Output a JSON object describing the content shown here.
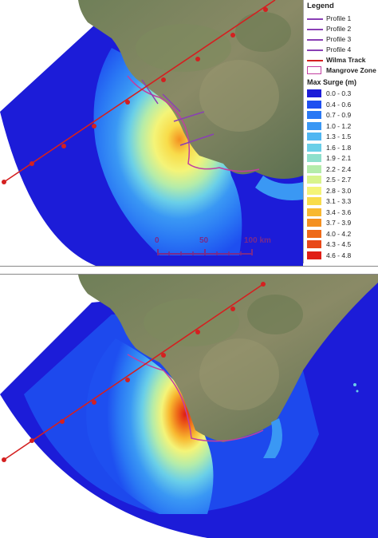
{
  "legend": {
    "title": "Legend",
    "profiles": [
      {
        "label": "Profile 1",
        "color": "#8a3fb5"
      },
      {
        "label": "Profile 2",
        "color": "#8a3fb5"
      },
      {
        "label": "Profile 3",
        "color": "#8a3fb5"
      },
      {
        "label": "Profile 4",
        "color": "#8a3fb5"
      }
    ],
    "track": {
      "label": "Wilma Track",
      "color": "#d42020"
    },
    "mangrove": {
      "label": "Mangrove Zone",
      "color": "#c23fa0"
    },
    "surge_title": "Max Surge (m)",
    "classes": [
      {
        "label": "0.0 - 0.3",
        "color": "#1c1cd8"
      },
      {
        "label": "0.4 - 0.6",
        "color": "#1e4ff0"
      },
      {
        "label": "0.7 - 0.9",
        "color": "#2a78f4"
      },
      {
        "label": "1.0 - 1.2",
        "color": "#3a98f4"
      },
      {
        "label": "1.3 - 1.5",
        "color": "#4fb6f2"
      },
      {
        "label": "1.6 - 1.8",
        "color": "#6acfe8"
      },
      {
        "label": "1.9 - 2.1",
        "color": "#8ee0cc"
      },
      {
        "label": "2.2 - 2.4",
        "color": "#b4ecaa"
      },
      {
        "label": "2.5 - 2.7",
        "color": "#d8f48c"
      },
      {
        "label": "2.8 - 3.0",
        "color": "#f4f478"
      },
      {
        "label": "3.1 - 3.3",
        "color": "#f8dc4a"
      },
      {
        "label": "3.4 - 3.6",
        "color": "#f8b830"
      },
      {
        "label": "3.7 - 3.9",
        "color": "#f49020"
      },
      {
        "label": "4.0 - 4.2",
        "color": "#ee6a18"
      },
      {
        "label": "4.3 - 4.5",
        "color": "#e84818"
      },
      {
        "label": "4.6 - 4.8",
        "color": "#e01e16"
      }
    ]
  },
  "scale": {
    "t0": "0",
    "t50": "50",
    "t100": "100 km"
  }
}
